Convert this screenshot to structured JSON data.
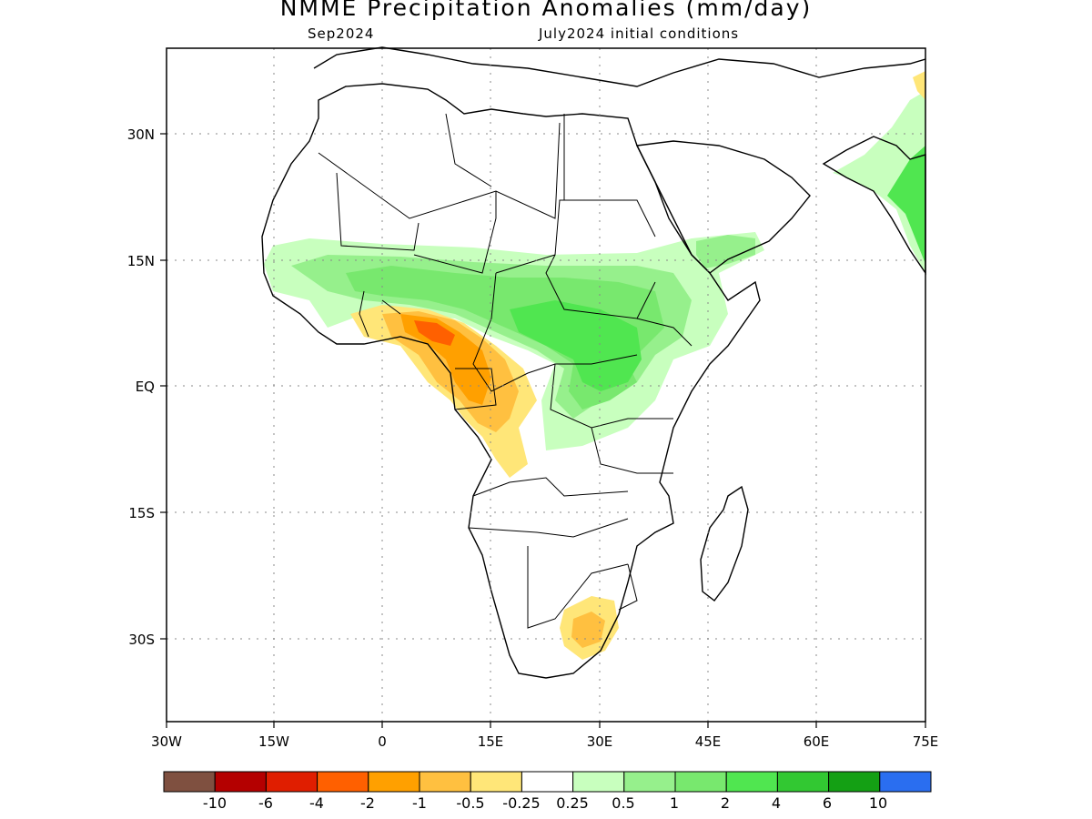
{
  "title": "NMME Precipitation Anomalies (mm/day)",
  "subtitle_left": "Sep2024",
  "subtitle_right": "July2024 initial conditions",
  "lat_labels": [
    "30N",
    "15N",
    "EQ",
    "15S",
    "30S"
  ],
  "lon_labels": [
    "30W",
    "15W",
    "0",
    "15E",
    "30E",
    "45E",
    "60E",
    "75E"
  ],
  "colorbar": {
    "colors": [
      "#7f5040",
      "#b40000",
      "#e01e00",
      "#ff6000",
      "#ffa000",
      "#ffc040",
      "#ffe678",
      "#ffffff",
      "#c8ffbe",
      "#96f08c",
      "#78e86e",
      "#50e650",
      "#32c832",
      "#14a014",
      "#2a6ef0"
    ],
    "labels": [
      "-10",
      "-6",
      "-4",
      "-2",
      "-1",
      "-0.5",
      "-0.25",
      "0.25",
      "0.5",
      "1",
      "2",
      "4",
      "6",
      "10"
    ]
  },
  "map": {
    "lon_range": [
      -30,
      75
    ],
    "lat_range": [
      -46,
      46
    ],
    "anomaly_colors": {
      "green_light": "#c8ffbe",
      "green_mid": "#96f08c",
      "green_strong": "#50e650",
      "yellow": "#ffe678",
      "orange_light": "#ffc040",
      "orange": "#ffa000",
      "orange_dark": "#ff6000"
    }
  }
}
